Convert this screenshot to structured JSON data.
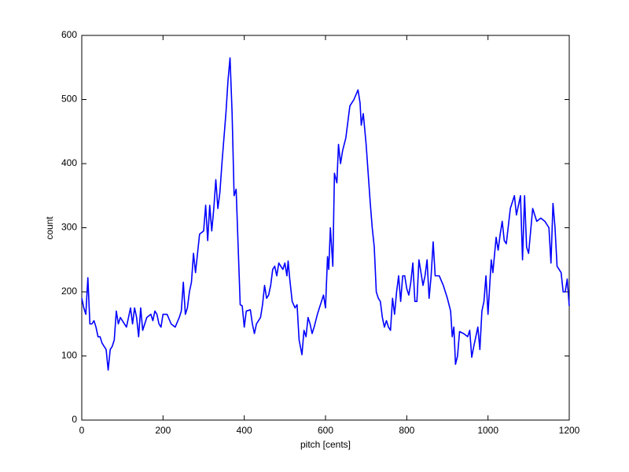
{
  "chart_data": {
    "type": "line",
    "xlabel": "pitch [cents]",
    "ylabel": "count",
    "color": "#0000ff",
    "x": [
      0,
      5,
      10,
      15,
      20,
      25,
      30,
      35,
      40,
      45,
      50,
      55,
      60,
      65,
      70,
      75,
      80,
      85,
      90,
      95,
      100,
      110,
      120,
      125,
      130,
      135,
      140,
      145,
      150,
      160,
      170,
      175,
      180,
      185,
      190,
      195,
      200,
      210,
      220,
      230,
      240,
      245,
      250,
      255,
      260,
      265,
      270,
      275,
      280,
      285,
      290,
      300,
      305,
      310,
      315,
      320,
      325,
      330,
      335,
      340,
      345,
      350,
      355,
      360,
      365,
      370,
      375,
      380,
      385,
      390,
      395,
      400,
      405,
      415,
      420,
      425,
      430,
      440,
      445,
      450,
      455,
      460,
      465,
      470,
      475,
      480,
      485,
      490,
      495,
      500,
      505,
      508,
      512,
      518,
      525,
      530,
      535,
      542,
      547,
      552,
      557,
      562,
      567,
      572,
      580,
      590,
      595,
      600,
      605,
      608,
      612,
      618,
      622,
      628,
      632,
      637,
      642,
      650,
      660,
      670,
      680,
      685,
      688,
      693,
      700,
      710,
      715,
      720,
      725,
      730,
      735,
      740,
      745,
      750,
      755,
      760,
      765,
      770,
      775,
      780,
      785,
      790,
      795,
      800,
      805,
      810,
      815,
      820,
      825,
      830,
      835,
      840,
      845,
      850,
      855,
      860,
      865,
      870,
      880,
      890,
      900,
      908,
      912,
      916,
      920,
      925,
      930,
      940,
      950,
      955,
      960,
      965,
      970,
      975,
      980,
      985,
      990,
      995,
      1000,
      1008,
      1012,
      1020,
      1025,
      1030,
      1035,
      1040,
      1045,
      1055,
      1065,
      1070,
      1080,
      1085,
      1090,
      1095,
      1100,
      1110,
      1120,
      1130,
      1140,
      1150,
      1155,
      1160,
      1165,
      1170,
      1180,
      1185,
      1190,
      1195,
      1200
    ],
    "values": [
      190,
      175,
      165,
      222,
      150,
      150,
      155,
      145,
      130,
      130,
      120,
      115,
      110,
      78,
      110,
      115,
      125,
      170,
      150,
      160,
      155,
      145,
      175,
      150,
      175,
      160,
      130,
      175,
      140,
      160,
      165,
      155,
      170,
      165,
      150,
      145,
      165,
      165,
      150,
      145,
      160,
      170,
      215,
      165,
      175,
      200,
      215,
      260,
      230,
      260,
      290,
      295,
      335,
      280,
      335,
      295,
      330,
      375,
      330,
      355,
      400,
      440,
      480,
      530,
      565,
      480,
      350,
      360,
      270,
      180,
      178,
      145,
      170,
      172,
      150,
      135,
      150,
      160,
      180,
      210,
      190,
      195,
      210,
      235,
      240,
      225,
      245,
      240,
      235,
      245,
      225,
      248,
      220,
      185,
      175,
      180,
      125,
      102,
      140,
      130,
      160,
      150,
      135,
      145,
      165,
      185,
      195,
      175,
      255,
      235,
      300,
      240,
      385,
      370,
      430,
      400,
      420,
      440,
      490,
      500,
      515,
      495,
      460,
      478,
      430,
      340,
      300,
      270,
      200,
      190,
      185,
      160,
      145,
      155,
      145,
      140,
      190,
      165,
      200,
      225,
      185,
      225,
      225,
      205,
      195,
      215,
      245,
      185,
      185,
      250,
      230,
      210,
      225,
      250,
      190,
      225,
      278,
      225,
      225,
      210,
      190,
      170,
      130,
      145,
      87,
      100,
      138,
      135,
      130,
      140,
      98,
      115,
      130,
      145,
      110,
      170,
      185,
      225,
      165,
      250,
      230,
      285,
      265,
      290,
      310,
      280,
      275,
      330,
      350,
      320,
      350,
      250,
      350,
      270,
      260,
      330,
      310,
      315,
      310,
      300,
      245,
      338,
      300,
      240,
      230,
      200,
      200,
      220,
      178
    ],
    "xlim": [
      0,
      1200
    ],
    "xticks": [
      0,
      200,
      400,
      600,
      800,
      1000,
      1200
    ],
    "ylim": [
      0,
      600
    ],
    "yticks": [
      0,
      100,
      200,
      300,
      400,
      500,
      600
    ]
  }
}
